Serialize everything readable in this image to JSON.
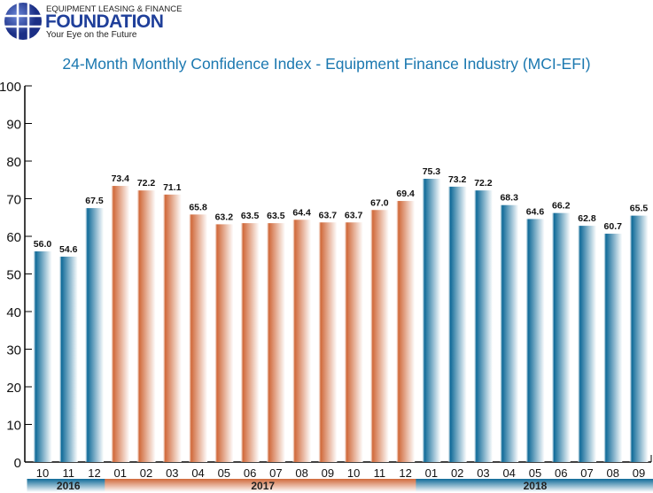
{
  "logo": {
    "line1": "EQUIPMENT LEASING & FINANCE",
    "line2": "FOUNDATION",
    "tagline": "Your Eye on the Future",
    "color": "#1f3f9a"
  },
  "chart_data": {
    "type": "bar",
    "title": "24-Month Monthly Confidence Index - Equipment Finance Industry (MCI-EFI)",
    "categories": [
      "10",
      "11",
      "12",
      "01",
      "02",
      "03",
      "04",
      "05",
      "06",
      "07",
      "08",
      "09",
      "10",
      "11",
      "12",
      "01",
      "02",
      "03",
      "04",
      "05",
      "06",
      "07",
      "08",
      "09"
    ],
    "values": [
      56.0,
      54.6,
      67.5,
      73.4,
      72.2,
      71.1,
      65.8,
      63.2,
      63.5,
      63.5,
      64.4,
      63.7,
      63.7,
      67.0,
      69.4,
      75.3,
      73.2,
      72.2,
      68.3,
      64.6,
      66.2,
      62.8,
      60.7,
      65.5
    ],
    "years": [
      {
        "label": "2016",
        "count": 3,
        "color": "#0f6a98"
      },
      {
        "label": "2017",
        "count": 12,
        "color": "#d0693a"
      },
      {
        "label": "2018",
        "count": 9,
        "color": "#0f6a98"
      }
    ],
    "ylim": [
      0,
      100
    ],
    "yticks": [
      0,
      10,
      20,
      30,
      40,
      50,
      60,
      70,
      80,
      90,
      100
    ],
    "grid": false
  }
}
